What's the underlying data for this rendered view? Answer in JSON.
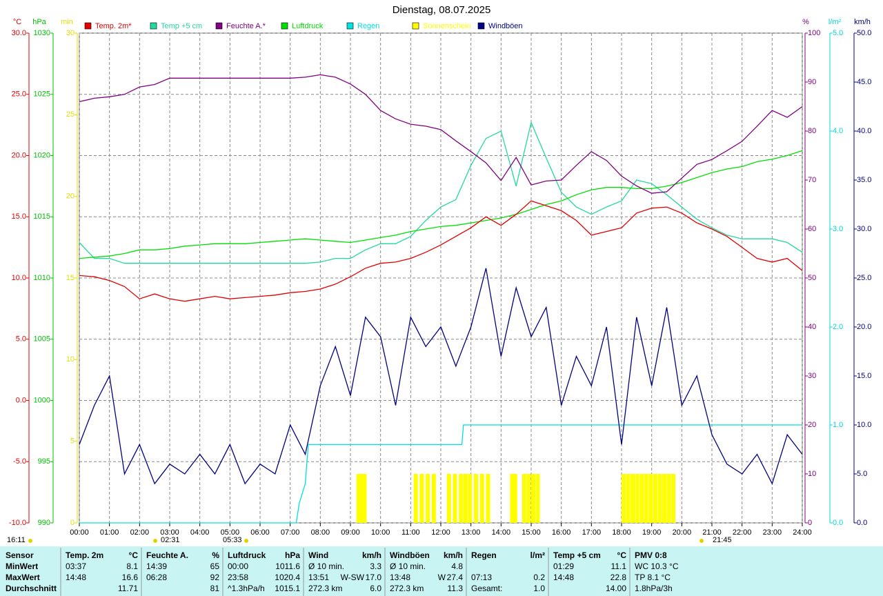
{
  "chart_data": {
    "type": "line",
    "title": "Dienstag, 08.07.2025",
    "grid": true,
    "xlim": [
      0,
      24
    ],
    "xticks": [
      {
        "value": 0,
        "label": "00:00"
      },
      {
        "value": 1,
        "label": "01:00"
      },
      {
        "value": 2,
        "label": "02:00"
      },
      {
        "value": 3,
        "label": "03:00"
      },
      {
        "value": 4,
        "label": "04:00"
      },
      {
        "value": 5,
        "label": "05:00"
      },
      {
        "value": 6,
        "label": "06:00"
      },
      {
        "value": 7,
        "label": "07:00"
      },
      {
        "value": 8,
        "label": "08:00"
      },
      {
        "value": 9,
        "label": "09:00"
      },
      {
        "value": 10,
        "label": "10:00"
      },
      {
        "value": 11,
        "label": "11:00"
      },
      {
        "value": 12,
        "label": "12:00"
      },
      {
        "value": 13,
        "label": "13:00"
      },
      {
        "value": 14,
        "label": "14:00"
      },
      {
        "value": 15,
        "label": "15:00"
      },
      {
        "value": 16,
        "label": "16:00"
      },
      {
        "value": 17,
        "label": "17:00"
      },
      {
        "value": 18,
        "label": "18:00"
      },
      {
        "value": 19,
        "label": "19:00"
      },
      {
        "value": 20,
        "label": "20:00"
      },
      {
        "value": 21,
        "label": "21:00"
      },
      {
        "value": 22,
        "label": "22:00"
      },
      {
        "value": 23,
        "label": "23:00"
      },
      {
        "value": 24,
        "label": "24:00"
      }
    ],
    "axes": [
      {
        "id": "y",
        "label": "°C",
        "color": "#e00000",
        "lim": [
          -10,
          30
        ],
        "ticks": [
          {
            "value": -10,
            "label": "-10.0"
          },
          {
            "value": -5,
            "label": "-5.0"
          },
          {
            "value": 0,
            "label": "0.0"
          },
          {
            "value": 5,
            "label": "5.0"
          },
          {
            "value": 10,
            "label": "10.0"
          },
          {
            "value": 15,
            "label": "15.0"
          },
          {
            "value": 20,
            "label": "20.0"
          },
          {
            "value": 25,
            "label": "25.0"
          },
          {
            "value": 30,
            "label": "30.0"
          }
        ]
      },
      {
        "id": "y2",
        "label": "hPa",
        "color": "#00c000",
        "lim": [
          990,
          1030
        ],
        "ticks": [
          990,
          995,
          1000,
          1005,
          1010,
          1015,
          1020,
          1025,
          1030
        ]
      },
      {
        "id": "y3",
        "label": "min",
        "color": "#e0e000",
        "lim": [
          0,
          30
        ],
        "ticks": [
          0,
          5,
          10,
          15,
          20,
          25,
          30
        ]
      },
      {
        "id": "y4",
        "label": "%",
        "color": "#800080",
        "lim": [
          0,
          100
        ],
        "ticks": [
          0,
          10,
          20,
          30,
          40,
          50,
          60,
          70,
          80,
          90,
          100
        ]
      },
      {
        "id": "y5",
        "label": "l/m²",
        "color": "#00d8d8",
        "lim": [
          0,
          5
        ],
        "ticks": [
          {
            "value": 0,
            "label": "0.0"
          },
          {
            "value": 1,
            "label": "1.0"
          },
          {
            "value": 2,
            "label": "2.0"
          },
          {
            "value": 3,
            "label": "3.0"
          },
          {
            "value": 4,
            "label": "4.0"
          },
          {
            "value": 5,
            "label": "5.0"
          }
        ]
      },
      {
        "id": "y6",
        "label": "km/h",
        "color": "#000080",
        "lim": [
          0,
          50
        ],
        "ticks": [
          {
            "value": 0,
            "label": "0.0"
          },
          {
            "value": 5,
            "label": "5.0"
          },
          {
            "value": 10,
            "label": "10.0"
          },
          {
            "value": 15,
            "label": "15.0"
          },
          {
            "value": 20,
            "label": "20.0"
          },
          {
            "value": 25,
            "label": "25.0"
          },
          {
            "value": 30,
            "label": "30.0"
          },
          {
            "value": 35,
            "label": "35.0"
          },
          {
            "value": 40,
            "label": "40.0"
          },
          {
            "value": 45,
            "label": "45.0"
          },
          {
            "value": 50,
            "label": "50.0"
          }
        ]
      }
    ],
    "x": [
      0,
      0.5,
      1,
      1.5,
      2,
      2.5,
      3,
      3.5,
      4,
      4.5,
      5,
      5.5,
      6,
      6.5,
      7,
      7.5,
      8,
      8.5,
      9,
      9.5,
      10,
      10.5,
      11,
      11.5,
      12,
      12.5,
      13,
      13.5,
      14,
      14.5,
      15,
      15.5,
      16,
      16.5,
      17,
      17.5,
      18,
      18.5,
      19,
      19.5,
      20,
      20.5,
      21,
      21.5,
      22,
      22.5,
      23,
      23.5,
      24
    ],
    "series": [
      {
        "name": "Temp. 2m*",
        "color": "#e00000",
        "axis": "y",
        "type": "line",
        "values": [
          10.2,
          10.1,
          9.8,
          9.3,
          8.3,
          8.7,
          8.3,
          8.1,
          8.3,
          8.5,
          8.3,
          8.4,
          8.5,
          8.6,
          8.8,
          8.9,
          9.1,
          9.5,
          10.1,
          10.8,
          11.2,
          11.3,
          11.6,
          12.1,
          12.7,
          13.4,
          14.1,
          15.0,
          14.3,
          15.2,
          16.3,
          15.9,
          15.5,
          14.7,
          13.5,
          13.8,
          14.1,
          15.3,
          15.7,
          15.8,
          15.3,
          14.5,
          14.0,
          13.4,
          12.5,
          11.6,
          11.3,
          11.6,
          10.6
        ]
      },
      {
        "name": "Temp +5 cm",
        "color": "#20d8a0",
        "axis": "y",
        "type": "line",
        "values": [
          12.9,
          11.6,
          11.6,
          11.2,
          11.2,
          11.2,
          11.2,
          11.2,
          11.2,
          11.2,
          11.2,
          11.2,
          11.2,
          11.2,
          11.2,
          11.2,
          11.3,
          11.6,
          11.6,
          12.3,
          12.8,
          12.8,
          13.4,
          14.7,
          15.8,
          16.4,
          19.2,
          21.4,
          22.0,
          17.5,
          22.7,
          19.8,
          17.0,
          15.8,
          15.2,
          15.8,
          16.3,
          18.0,
          17.7,
          16.8,
          15.8,
          14.8,
          14.1,
          13.5,
          13.2,
          13.2,
          13.2,
          12.9,
          12.1
        ]
      },
      {
        "name": "Feuchte A.*",
        "color": "#800080",
        "axis": "y4",
        "type": "line",
        "values": [
          86.0,
          86.7,
          87.0,
          87.5,
          89.0,
          89.5,
          90.8,
          90.8,
          90.8,
          90.8,
          90.8,
          90.8,
          90.8,
          90.8,
          90.8,
          91.0,
          91.5,
          91.0,
          89.6,
          87.5,
          84.2,
          82.5,
          81.4,
          81.0,
          80.3,
          78.0,
          75.8,
          73.5,
          69.9,
          74.6,
          69.0,
          69.8,
          70.0,
          73.0,
          75.8,
          74.0,
          70.8,
          68.8,
          67.3,
          67.6,
          70.4,
          73.2,
          74.2,
          76.0,
          77.9,
          81.0,
          84.2,
          82.8,
          85.0
        ]
      },
      {
        "name": "Luftdruck",
        "color": "#00e000",
        "axis": "y2",
        "type": "line",
        "values": [
          1011.6,
          1011.7,
          1011.8,
          1012.0,
          1012.3,
          1012.3,
          1012.4,
          1012.6,
          1012.7,
          1012.8,
          1012.8,
          1012.8,
          1012.9,
          1013.0,
          1013.1,
          1013.2,
          1013.1,
          1013.0,
          1012.9,
          1013.1,
          1013.3,
          1013.5,
          1013.8,
          1014.0,
          1014.2,
          1014.3,
          1014.5,
          1014.7,
          1014.9,
          1015.2,
          1015.6,
          1016.0,
          1016.3,
          1016.8,
          1017.2,
          1017.4,
          1017.4,
          1017.3,
          1017.3,
          1017.5,
          1017.8,
          1018.2,
          1018.6,
          1018.9,
          1019.1,
          1019.5,
          1019.7,
          1020.0,
          1020.4
        ]
      },
      {
        "name": "Regen",
        "color": "#00e0e0",
        "axis": "y5",
        "type": "line",
        "x": [
          0,
          7.2,
          7.3,
          7.5,
          7.6,
          12.7,
          12.75,
          24
        ],
        "values": [
          0,
          0,
          0.2,
          0.4,
          0.8,
          0.8,
          1.0,
          1.0
        ]
      },
      {
        "name": "Sonnenschein",
        "color": "#ffff00",
        "axis": "y3",
        "type": "bar",
        "x": [
          9.2,
          9.3,
          9.4,
          11.1,
          11.3,
          11.5,
          11.7,
          12.2,
          12.4,
          12.6,
          12.75,
          12.9,
          13.1,
          13.3,
          13.5,
          14.3,
          14.4,
          14.7,
          14.85,
          15.0,
          15.15,
          18.0,
          18.15,
          18.3,
          18.45,
          18.6,
          18.75,
          18.9,
          19.05,
          19.2,
          19.35,
          19.5,
          19.65
        ],
        "values": [
          3,
          3,
          3,
          3,
          3,
          3,
          3,
          3,
          3,
          3,
          3,
          3,
          3,
          3,
          3,
          3,
          3,
          3,
          3,
          3,
          3,
          3,
          3,
          3,
          3,
          3,
          3,
          3,
          3,
          3,
          3,
          3,
          3
        ]
      },
      {
        "name": "Windböen",
        "color": "#000080",
        "axis": "y6",
        "type": "line",
        "values": [
          8,
          12,
          15,
          5,
          8,
          4,
          6,
          5,
          7,
          5,
          8,
          4,
          6,
          5,
          10,
          7,
          14,
          18,
          13,
          21,
          19,
          12,
          21,
          18,
          20,
          16,
          20,
          26,
          17,
          24,
          19,
          22,
          12,
          17,
          14,
          20,
          8,
          21,
          14,
          22,
          12,
          15,
          9,
          6,
          5,
          7,
          4,
          9,
          7
        ]
      }
    ],
    "events": [
      "16:11",
      "02:31",
      "05:33",
      "21:45"
    ]
  },
  "table": {
    "header": [
      {
        "l": "Sensor"
      },
      {
        "l": "Temp. 2m",
        "r": "°C"
      },
      {
        "l": "Feuchte A.",
        "r": "%"
      },
      {
        "l": "Luftdruck",
        "r": "hPa"
      },
      {
        "l": "Wind",
        "r": "km/h"
      },
      {
        "l": "Windböen",
        "r": "km/h"
      },
      {
        "l": "Regen",
        "r": "l/m²"
      },
      {
        "l": "Temp +5 cm",
        "r": "°C"
      },
      {
        "l": "PMV 0:8"
      }
    ],
    "rows": [
      [
        {
          "l": "MinWert"
        },
        {
          "l": "03:37",
          "r": "8.1"
        },
        {
          "l": "14:39",
          "r": "65"
        },
        {
          "l": "00:00",
          "r": "1011.6"
        },
        {
          "l": "Ø 10 min.",
          "r": "3.3"
        },
        {
          "l": "Ø 10 min.",
          "r": "4.8"
        },
        {},
        {
          "l": "01:29",
          "r": "11.1"
        },
        {
          "l": "WC 10.3 °C"
        }
      ],
      [
        {
          "l": "MaxWert"
        },
        {
          "l": "14:48",
          "r": "16.6"
        },
        {
          "l": "06:28",
          "r": "92"
        },
        {
          "l": "23:58",
          "r": "1020.4"
        },
        {
          "l": "13:51",
          "m": "W-SW",
          "r": "17.0"
        },
        {
          "l": "13:48",
          "m": "W",
          "r": "27.4"
        },
        {
          "l": "07:13",
          "r": "0.2"
        },
        {
          "l": "14:48",
          "r": "22.8"
        },
        {
          "l": "TP 8.1 °C"
        }
      ],
      [
        {
          "l": "Durchschnitt"
        },
        {
          "r": "11.71"
        },
        {
          "r": "81"
        },
        {
          "l": "^1.3hPa/h",
          "r": "1015.1"
        },
        {
          "l": "272.3 km",
          "r": "6.0"
        },
        {
          "l": "272.3 km",
          "r": "11.3"
        },
        {
          "l": "Gesamt:",
          "r": "1.0"
        },
        {
          "r": "14.00"
        },
        {
          "l": "1.8hPa/3h"
        }
      ]
    ]
  }
}
